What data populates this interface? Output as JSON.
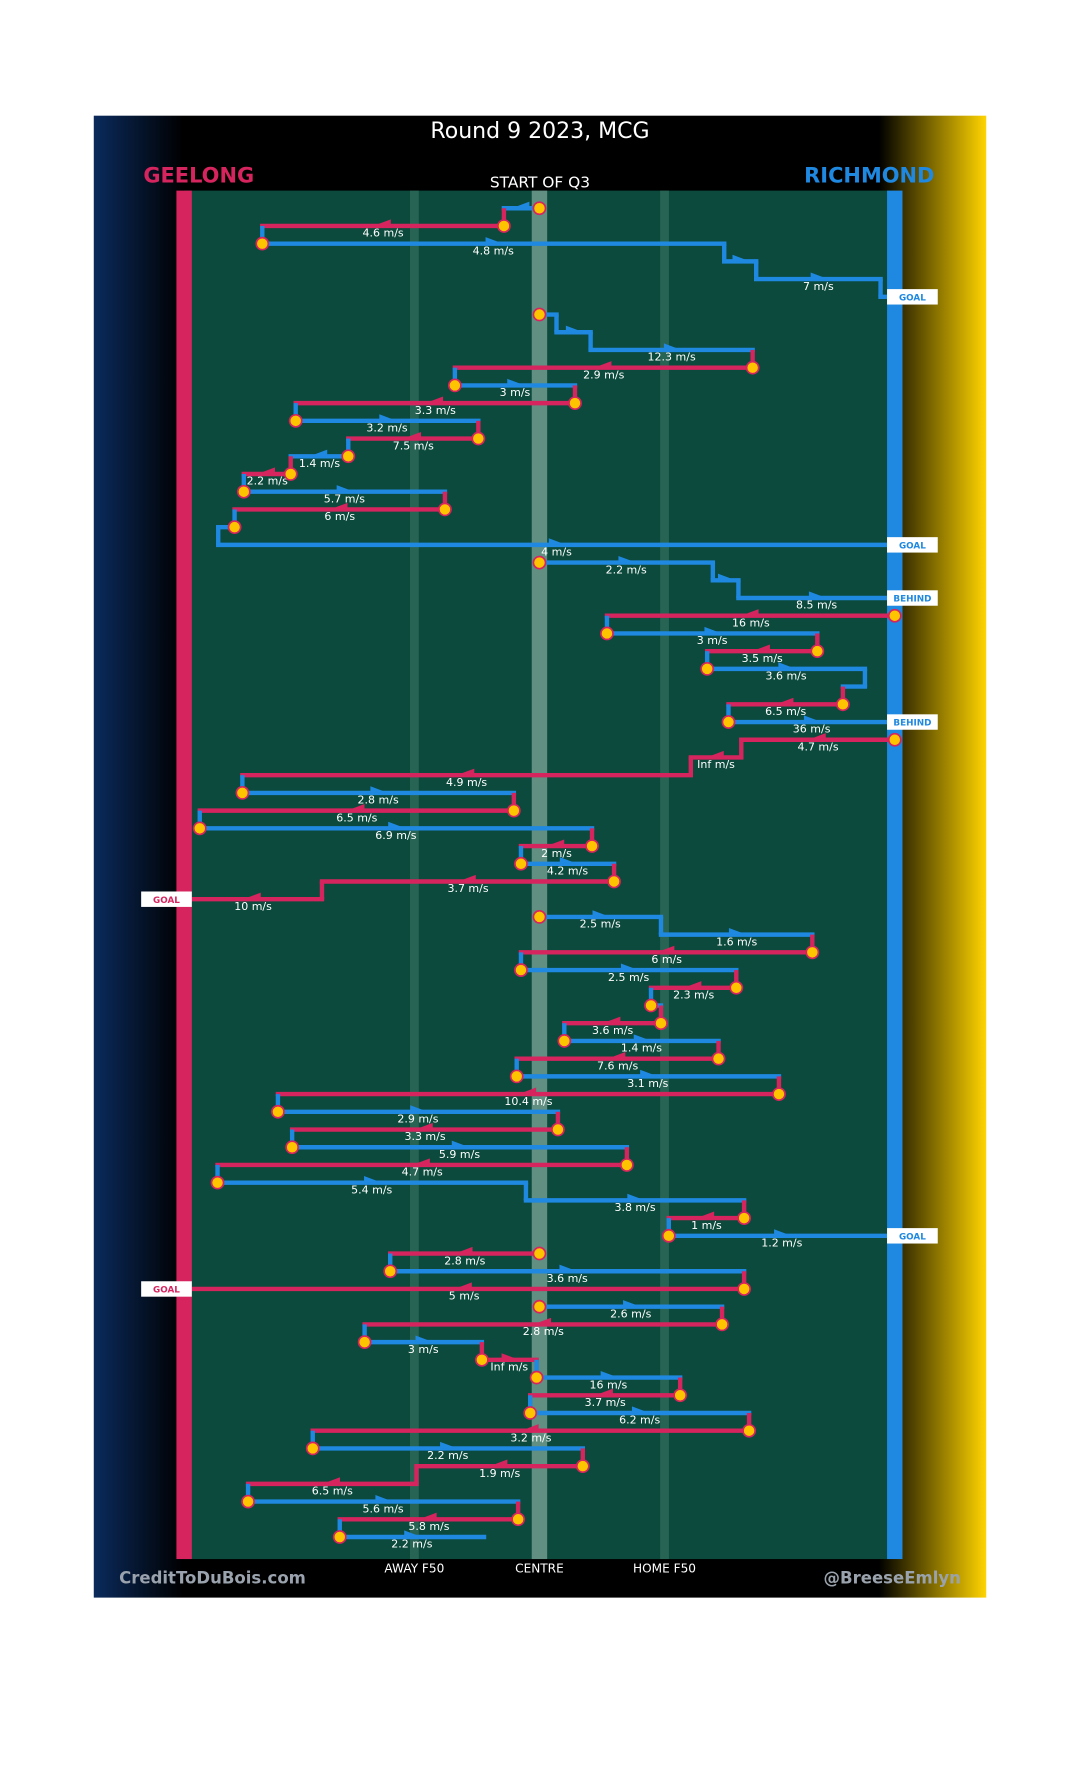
{
  "chart_data": {
    "type": "possession_chain",
    "title": "Round 9 2023, MCG",
    "subtitle": "START OF Q3",
    "credit_left": "CreditToDuBois.com",
    "credit_right": "@BreeseEmlyn",
    "teams": [
      {
        "name": "GEELONG",
        "color": "#d6245e"
      },
      {
        "name": "RICHMOND",
        "color": "#1f88e0"
      }
    ],
    "xlim": [
      0,
      100
    ],
    "field_lines": [
      {
        "value": 32.4,
        "label": "AWAY F50"
      },
      {
        "value": 50,
        "label": "CENTRE"
      },
      {
        "value": 67.6,
        "label": "HOME F50"
      }
    ],
    "segments": [
      {
        "team": 1,
        "from": 50,
        "to": 45
      },
      {
        "team": 0,
        "from": 45,
        "to": 11,
        "label": "4.6 m/s"
      },
      {
        "team": 1,
        "from": 11,
        "to": 76,
        "label": "4.8 m/s"
      },
      {
        "team": 1,
        "from": 76,
        "to": 80.5
      },
      {
        "team": 1,
        "from": 80.5,
        "to": 98,
        "label": "7 m/s"
      },
      {
        "team": 1,
        "from": 98,
        "to": 100,
        "result": "GOAL"
      },
      {
        "team": 1,
        "from": 50,
        "to": 52.4
      },
      {
        "team": 1,
        "from": 52.4,
        "to": 57.2
      },
      {
        "team": 1,
        "from": 57.2,
        "to": 80,
        "label": "12.3 m/s"
      },
      {
        "team": 0,
        "from": 80,
        "to": 38.1,
        "label": "2.9 m/s"
      },
      {
        "team": 1,
        "from": 38.1,
        "to": 55,
        "label": "3 m/s"
      },
      {
        "team": 0,
        "from": 55,
        "to": 15.7,
        "label": "3.3 m/s"
      },
      {
        "team": 1,
        "from": 15.7,
        "to": 41.4,
        "label": "3.2 m/s"
      },
      {
        "team": 0,
        "from": 41.4,
        "to": 23.1,
        "label": "7.5 m/s"
      },
      {
        "team": 1,
        "from": 23.1,
        "to": 15,
        "label": "1.4 m/s"
      },
      {
        "team": 0,
        "from": 15,
        "to": 8.4,
        "label": "2.2 m/s"
      },
      {
        "team": 1,
        "from": 8.4,
        "to": 36.7,
        "label": "5.7 m/s"
      },
      {
        "team": 0,
        "from": 36.7,
        "to": 7.1,
        "label": "6 m/s"
      },
      {
        "team": 1,
        "from": 7.1,
        "to": 4.8
      },
      {
        "team": 1,
        "from": 4.8,
        "to": 100,
        "label": "4 m/s",
        "result": "GOAL"
      },
      {
        "team": 1,
        "from": 50,
        "to": 74.4,
        "label": "2.2 m/s"
      },
      {
        "team": 1,
        "from": 74.4,
        "to": 78
      },
      {
        "team": 1,
        "from": 78,
        "to": 100,
        "label": "8.5 m/s",
        "result": "BEHIND"
      },
      {
        "team": 0,
        "from": 100,
        "to": 59.5,
        "label": "16 m/s"
      },
      {
        "team": 1,
        "from": 59.5,
        "to": 89.1,
        "label": "3 m/s"
      },
      {
        "team": 0,
        "from": 89.1,
        "to": 73.6,
        "label": "3.5 m/s"
      },
      {
        "team": 1,
        "from": 73.6,
        "to": 95.8,
        "label": "3.6 m/s"
      },
      {
        "team": 1,
        "from": 95.8,
        "to": 92.7
      },
      {
        "team": 0,
        "from": 92.7,
        "to": 76.6,
        "label": "6.5 m/s"
      },
      {
        "team": 1,
        "from": 76.6,
        "to": 100,
        "label": "36 m/s",
        "result": "BEHIND"
      },
      {
        "team": 0,
        "from": 100,
        "to": 78.4,
        "label": "4.7 m/s"
      },
      {
        "team": 0,
        "from": 78.4,
        "to": 71.3,
        "label": "Inf m/s"
      },
      {
        "team": 0,
        "from": 71.3,
        "to": 8.2,
        "label": "4.9 m/s"
      },
      {
        "team": 1,
        "from": 8.2,
        "to": 46.4,
        "label": "2.8 m/s"
      },
      {
        "team": 0,
        "from": 46.4,
        "to": 2.2,
        "label": "6.5 m/s"
      },
      {
        "team": 1,
        "from": 2.2,
        "to": 57.4,
        "label": "6.9 m/s"
      },
      {
        "team": 0,
        "from": 57.4,
        "to": 47.4,
        "label": "2 m/s"
      },
      {
        "team": 1,
        "from": 47.4,
        "to": 60.5,
        "label": "4.2 m/s"
      },
      {
        "team": 0,
        "from": 60.5,
        "to": 19.4,
        "label": "3.7 m/s"
      },
      {
        "team": 0,
        "from": 19.4,
        "to": 0,
        "label": "10 m/s",
        "result": "GOAL"
      },
      {
        "team": 1,
        "from": 50,
        "to": 67.1,
        "label": "2.5 m/s"
      },
      {
        "team": 1,
        "from": 67.1,
        "to": 88.4,
        "label": "1.6 m/s"
      },
      {
        "team": 0,
        "from": 88.4,
        "to": 47.4,
        "label": "6 m/s"
      },
      {
        "team": 1,
        "from": 47.4,
        "to": 77.7,
        "label": "2.5 m/s"
      },
      {
        "team": 0,
        "from": 77.7,
        "to": 65.7,
        "label": "2.3 m/s"
      },
      {
        "team": 1,
        "from": 65.7,
        "to": 67.1
      },
      {
        "team": 0,
        "from": 67.1,
        "to": 53.5,
        "label": "3.6 m/s"
      },
      {
        "team": 1,
        "from": 53.5,
        "to": 75.2,
        "label": "1.4 m/s"
      },
      {
        "team": 0,
        "from": 75.2,
        "to": 46.8,
        "label": "7.6 m/s"
      },
      {
        "team": 1,
        "from": 46.8,
        "to": 83.7,
        "label": "3.1 m/s"
      },
      {
        "team": 0,
        "from": 83.7,
        "to": 13.2,
        "label": "10.4 m/s"
      },
      {
        "team": 1,
        "from": 13.2,
        "to": 52.6,
        "label": "2.9 m/s"
      },
      {
        "team": 0,
        "from": 52.6,
        "to": 15.2,
        "label": "3.3 m/s"
      },
      {
        "team": 1,
        "from": 15.2,
        "to": 62.3,
        "label": "5.9 m/s"
      },
      {
        "team": 0,
        "from": 62.3,
        "to": 4.7,
        "label": "4.7 m/s"
      },
      {
        "team": 1,
        "from": 4.7,
        "to": 48.1,
        "label": "5.4 m/s"
      },
      {
        "team": 1,
        "from": 48.1,
        "to": 78.8,
        "label": "3.8 m/s"
      },
      {
        "team": 0,
        "from": 78.8,
        "to": 68.2,
        "label": "1 m/s"
      },
      {
        "team": 1,
        "from": 68.2,
        "to": 100,
        "label": "1.2 m/s",
        "result": "GOAL"
      },
      {
        "team": 0,
        "from": 50,
        "to": 29,
        "label": "2.8 m/s"
      },
      {
        "team": 1,
        "from": 29,
        "to": 78.8,
        "label": "3.6 m/s"
      },
      {
        "team": 0,
        "from": 78.8,
        "to": 0,
        "label": "5 m/s",
        "result": "GOAL"
      },
      {
        "team": 1,
        "from": 50,
        "to": 75.7,
        "label": "2.6 m/s"
      },
      {
        "team": 0,
        "from": 75.7,
        "to": 25.4,
        "label": "2.8 m/s"
      },
      {
        "team": 1,
        "from": 25.4,
        "to": 41.9,
        "label": "3 m/s"
      },
      {
        "team": 0,
        "from": 41.9,
        "to": 49.6,
        "label": "Inf m/s"
      },
      {
        "team": 1,
        "from": 49.6,
        "to": 69.8,
        "label": "16 m/s"
      },
      {
        "team": 0,
        "from": 69.8,
        "to": 48.7,
        "label": "3.7 m/s"
      },
      {
        "team": 1,
        "from": 48.7,
        "to": 79.5,
        "label": "6.2 m/s"
      },
      {
        "team": 0,
        "from": 79.5,
        "to": 18.1,
        "label": "3.2 m/s"
      },
      {
        "team": 1,
        "from": 18.1,
        "to": 56.1,
        "label": "2.2 m/s"
      },
      {
        "team": 0,
        "from": 56.1,
        "to": 32.7,
        "label": "1.9 m/s"
      },
      {
        "team": 0,
        "from": 32.7,
        "to": 9,
        "label": "6.5 m/s"
      },
      {
        "team": 1,
        "from": 9,
        "to": 47,
        "label": "5.6 m/s"
      },
      {
        "team": 0,
        "from": 47,
        "to": 21.9,
        "label": "5.8 m/s"
      },
      {
        "team": 1,
        "from": 21.9,
        "to": 42.2,
        "label": "2.2 m/s"
      }
    ]
  }
}
